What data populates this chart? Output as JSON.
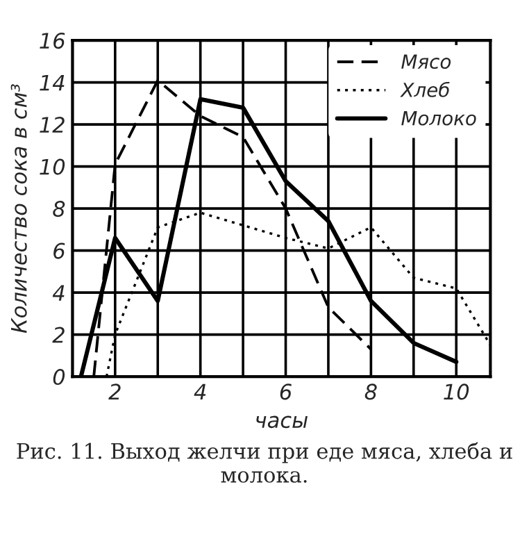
{
  "chart_data": {
    "type": "line",
    "xlabel": "часы",
    "ylabel": "Количество сока в см³",
    "annotations": [
      "Рис. 11. Выход желчи при еде мяса, хлеба и молока."
    ],
    "xlim": [
      1,
      10.8
    ],
    "ylim": [
      0,
      16
    ],
    "xticks": [
      {
        "value": 1,
        "label": null
      },
      2,
      {
        "value": 3,
        "label": null
      },
      4,
      {
        "value": 5,
        "label": null
      },
      6,
      {
        "value": 7,
        "label": null
      },
      8,
      {
        "value": 9,
        "label": null
      },
      10
    ],
    "yticks": [
      0,
      2,
      4,
      6,
      8,
      10,
      12,
      14,
      16
    ],
    "grid": true,
    "legend": "top right",
    "marker": "none",
    "series": [
      {
        "name": "Мясо",
        "color": "#000000",
        "line_style": "dashed",
        "x": [
          1.5,
          2,
          3,
          4,
          5,
          6,
          7,
          8
        ],
        "values": [
          0,
          10.1,
          14.1,
          12.4,
          11.4,
          8.0,
          3.3,
          1.3
        ]
      },
      {
        "name": "Хлеб",
        "color": "#000000",
        "line_style": "dotted",
        "x": [
          1.8,
          2,
          3,
          4,
          5,
          6,
          7,
          8,
          9,
          10,
          10.8
        ],
        "values": [
          0,
          2,
          7.1,
          7.8,
          7.2,
          6.6,
          6.1,
          7.1,
          4.7,
          4.2,
          1.5
        ]
      },
      {
        "name": "Молоко",
        "color": "#000000",
        "line_style": "solid",
        "x": [
          1.2,
          2,
          3,
          4,
          5,
          6,
          7,
          8,
          9,
          10
        ],
        "values": [
          0,
          6.6,
          3.6,
          13.2,
          12.8,
          9.3,
          7.4,
          3.6,
          1.6,
          0.7
        ]
      }
    ]
  }
}
